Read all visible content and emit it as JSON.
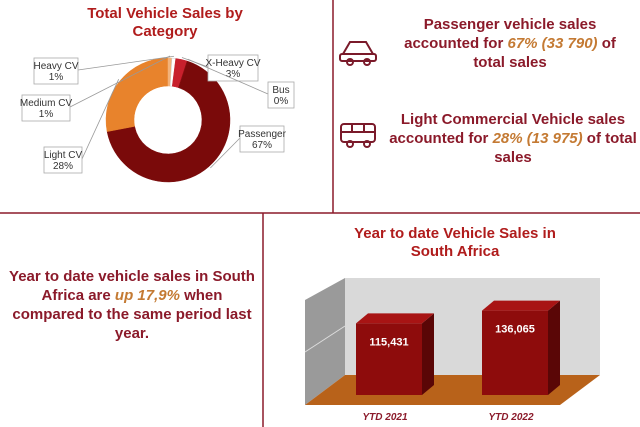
{
  "chart_data": [
    {
      "type": "donut",
      "title": "Total Vehicle Sales by Category",
      "categories": [
        "Passenger",
        "Light CV",
        "Medium CV",
        "Heavy CV",
        "X-Heavy CV",
        "Bus"
      ],
      "values": [
        67,
        28,
        1,
        1,
        3,
        0
      ],
      "value_labels": [
        "67%",
        "28%",
        "1%",
        "1%",
        "3%",
        "0%"
      ],
      "colors": [
        "#7a0a0a",
        "#e8832c",
        "#f2b27a",
        "#ffffff",
        "#c8202c",
        "#7a0a0a"
      ]
    },
    {
      "type": "bar3d",
      "title": "Year to date Vehicle Sales in South Africa",
      "categories": [
        "YTD 2021",
        "YTD 2022"
      ],
      "values": [
        115431,
        136065
      ],
      "value_labels": [
        "115,431",
        "136,065"
      ],
      "color": "#8e0c0c"
    }
  ],
  "panels": [
    {
      "before": "Passenger vehicle sales accounted for ",
      "highlight": "67% (33 790)",
      "after": " of total sales"
    },
    {
      "before": "Light Commercial Vehicle sales accounted for ",
      "highlight": "28% (13 975)",
      "after": " of total sales"
    },
    {
      "before": "Year to date vehicle sales in South Africa are ",
      "highlight": "up 17,9%",
      "after": " when compared to the same period last year."
    }
  ]
}
